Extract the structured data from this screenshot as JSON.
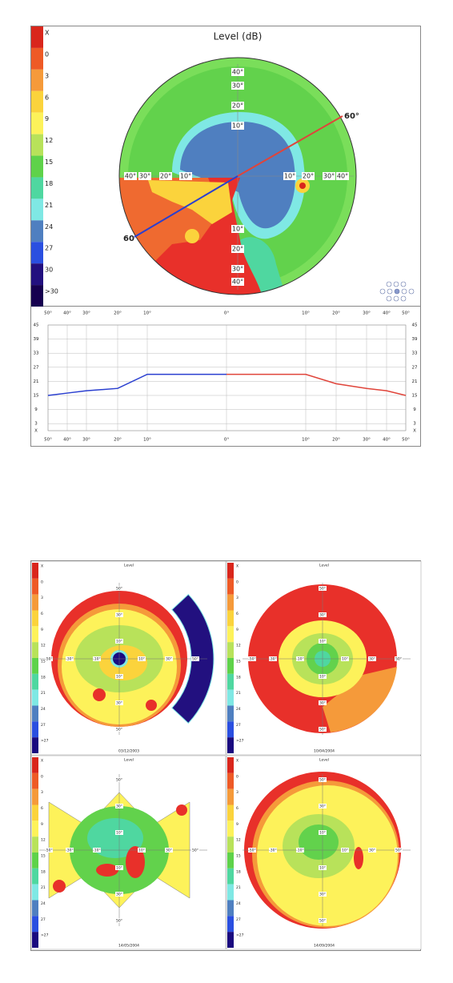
{
  "top_panel": {
    "title": "Level (dB)",
    "legend": {
      "labels": [
        "X",
        "0",
        "3",
        "6",
        "9",
        "12",
        "15",
        "18",
        "21",
        "24",
        "27",
        "30",
        ">30"
      ],
      "colors": [
        "#d9261c",
        "#ee5a26",
        "#f59a3a",
        "#fbd33c",
        "#fdf25a",
        "#b8e25a",
        "#5fd24a",
        "#4fd7a0",
        "#7fe8e4",
        "#4f7fc0",
        "#2a4fe0",
        "#22107f",
        "#16004f"
      ]
    },
    "ring_labels": [
      "10°",
      "20°",
      "30°",
      "40°"
    ],
    "meridian_labels": [
      "60°",
      "60"
    ]
  },
  "chart_data": {
    "type": "line",
    "xlim": [
      -50,
      50
    ],
    "ylim": [
      0,
      45
    ],
    "xticks": [
      {
        "value": -50,
        "label": "50°"
      },
      {
        "value": -40,
        "label": "40°"
      },
      {
        "value": -30,
        "label": "30°"
      },
      {
        "value": -20,
        "label": "20°"
      },
      {
        "value": -10,
        "label": "10°"
      },
      {
        "value": 0,
        "label": "0°"
      },
      {
        "value": 10,
        "label": "10°"
      },
      {
        "value": 20,
        "label": "20°"
      },
      {
        "value": 30,
        "label": "30°"
      },
      {
        "value": 40,
        "label": "40°"
      },
      {
        "value": 50,
        "label": "50°"
      }
    ],
    "yticks": [
      {
        "value": 0,
        "label": "X"
      },
      3,
      9,
      15,
      21,
      27,
      33,
      39,
      45
    ],
    "grid": true,
    "series": [
      {
        "color": "#2a3fd0",
        "x": [
          -50,
          -40,
          -30,
          -20,
          -10,
          0
        ],
        "values": [
          15,
          16,
          17,
          18,
          24,
          24
        ]
      },
      {
        "color": "#e0443a",
        "x": [
          0,
          10,
          20,
          30,
          40,
          50
        ],
        "values": [
          24,
          24,
          20,
          18,
          17,
          15
        ]
      }
    ]
  },
  "bottom_panels": {
    "legend": {
      "labels": [
        "X",
        "0",
        "3",
        "6",
        "9",
        "12",
        "15",
        "18",
        "21",
        "24",
        "27",
        ">27"
      ],
      "colors": [
        "#d9261c",
        "#ee5a26",
        "#f59a3a",
        "#fbd33c",
        "#fdf25a",
        "#b8e25a",
        "#5fd24a",
        "#4fd7a0",
        "#7fe8e4",
        "#4f7fc0",
        "#2a4fe0",
        "#1a0a7f"
      ]
    },
    "h_labels": [
      "-50°",
      "-30°",
      "-10°",
      "10°",
      "30°",
      "50°"
    ],
    "v_labels": [
      "50°",
      "30°",
      "10°",
      "10°",
      "30°",
      "50°"
    ],
    "panels": [
      {
        "title": "Level",
        "date": "03/12/2003"
      },
      {
        "title": "Level",
        "date": "10/04/2004"
      },
      {
        "title": "Level",
        "date": "14/05/2004"
      },
      {
        "title": "Level",
        "date": "14/09/2004"
      }
    ]
  }
}
